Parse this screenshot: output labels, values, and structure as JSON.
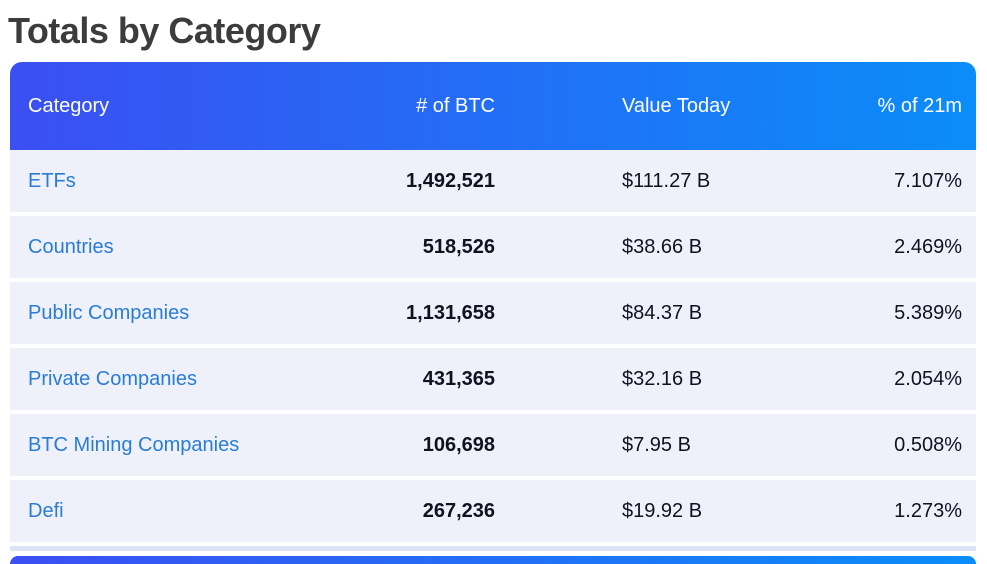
{
  "page": {
    "title": "Totals by Category"
  },
  "colors": {
    "header_gradient_start": "#3b4ff2",
    "header_gradient_end": "#0a8df9",
    "row_background": "#eef1fa",
    "divider": "#dfe3f6",
    "category_link": "#2a7cd4",
    "number_text": "#10131f",
    "title_text": "#3c3c3c",
    "header_text": "#ffffff"
  },
  "table": {
    "columns": [
      {
        "label": "Category"
      },
      {
        "label": "# of BTC"
      },
      {
        "label": "Value Today"
      },
      {
        "label": "% of 21m"
      }
    ],
    "rows": [
      {
        "category": "ETFs",
        "btc": "1,492,521",
        "value": "$111.27 B",
        "pct": "7.107%"
      },
      {
        "category": "Countries",
        "btc": "518,526",
        "value": "$38.66 B",
        "pct": "2.469%"
      },
      {
        "category": "Public Companies",
        "btc": "1,131,658",
        "value": "$84.37 B",
        "pct": "5.389%"
      },
      {
        "category": "Private Companies",
        "btc": "431,365",
        "value": "$32.16 B",
        "pct": "2.054%"
      },
      {
        "category": "BTC Mining Companies",
        "btc": "106,698",
        "value": "$7.95 B",
        "pct": "0.508%"
      },
      {
        "category": "Defi",
        "btc": "267,236",
        "value": "$19.92 B",
        "pct": "1.273%"
      }
    ]
  }
}
